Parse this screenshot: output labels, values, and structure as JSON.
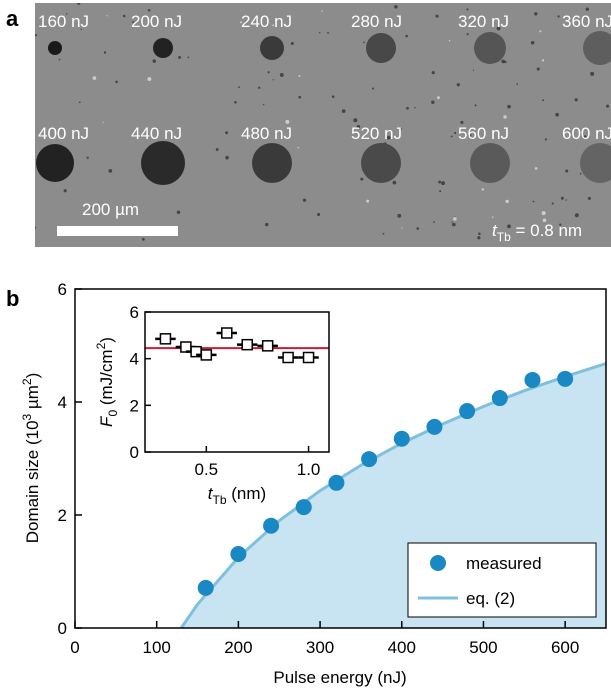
{
  "panel_a": {
    "label": "a",
    "energy_labels": [
      "160 nJ",
      "200 nJ",
      "240 nJ",
      "280 nJ",
      "320 nJ",
      "360 nJ",
      "400 nJ",
      "440 nJ",
      "480 nJ",
      "520 nJ",
      "560 nJ",
      "600 nJ"
    ],
    "scale_bar": "200 µm",
    "thickness_label": [
      "t",
      "Tb",
      " = 0.8 nm"
    ]
  },
  "chart_data": [
    {
      "type": "scatter",
      "panel_label": "b",
      "xlabel": "Pulse energy (nJ)",
      "ylabel": [
        "Domain size (10",
        "3",
        " µm",
        "2",
        ")"
      ],
      "xlim": [
        0,
        650
      ],
      "ylim": [
        0,
        6
      ],
      "xticks": [
        0,
        100,
        200,
        300,
        400,
        500,
        600
      ],
      "yticks": [
        0,
        2,
        4,
        6
      ],
      "legend": "lower right",
      "series": [
        {
          "name": "measured",
          "kind": "points",
          "color": "#1a88c4",
          "x": [
            160,
            200,
            240,
            280,
            320,
            360,
            400,
            440,
            480,
            520,
            560,
            600
          ],
          "values": [
            0.71,
            1.31,
            1.81,
            2.14,
            2.57,
            2.99,
            3.35,
            3.56,
            3.84,
            4.07,
            4.39,
            4.41
          ]
        },
        {
          "name": "eq. (2)",
          "kind": "line",
          "color": "#7fc0dc",
          "fill": "#c8e3f1",
          "x": [
            130,
            150,
            200,
            250,
            300,
            350,
            400,
            450,
            500,
            550,
            600,
            650
          ],
          "values": [
            0,
            0.42,
            1.25,
            1.9,
            2.43,
            2.88,
            3.27,
            3.61,
            3.92,
            4.2,
            4.45,
            4.68
          ]
        }
      ]
    },
    {
      "type": "errorbar",
      "xlabel": [
        "t",
        "Tb",
        " (nm)"
      ],
      "ylabel": [
        "F",
        "0",
        " (mJ/cm",
        "2",
        ")"
      ],
      "xlim": [
        0.2,
        1.1
      ],
      "ylim": [
        0,
        6
      ],
      "xticks": [
        0.5,
        {
          "value": 1,
          "label": "1.0"
        }
      ],
      "yticks": [
        0,
        2,
        4,
        6
      ],
      "x": [
        0.3,
        0.4,
        0.45,
        0.5,
        0.6,
        0.7,
        0.8,
        0.9,
        1.0
      ],
      "values": [
        4.85,
        4.5,
        4.3,
        4.16,
        5.1,
        4.6,
        4.55,
        4.05,
        4.05
      ],
      "xerr": [
        0.05,
        0.05,
        0.05,
        0.05,
        0.05,
        0.05,
        0.05,
        0.05,
        0.05
      ],
      "color": "#000000",
      "mean": 4.45,
      "mean_color": "#c41e3a"
    }
  ]
}
